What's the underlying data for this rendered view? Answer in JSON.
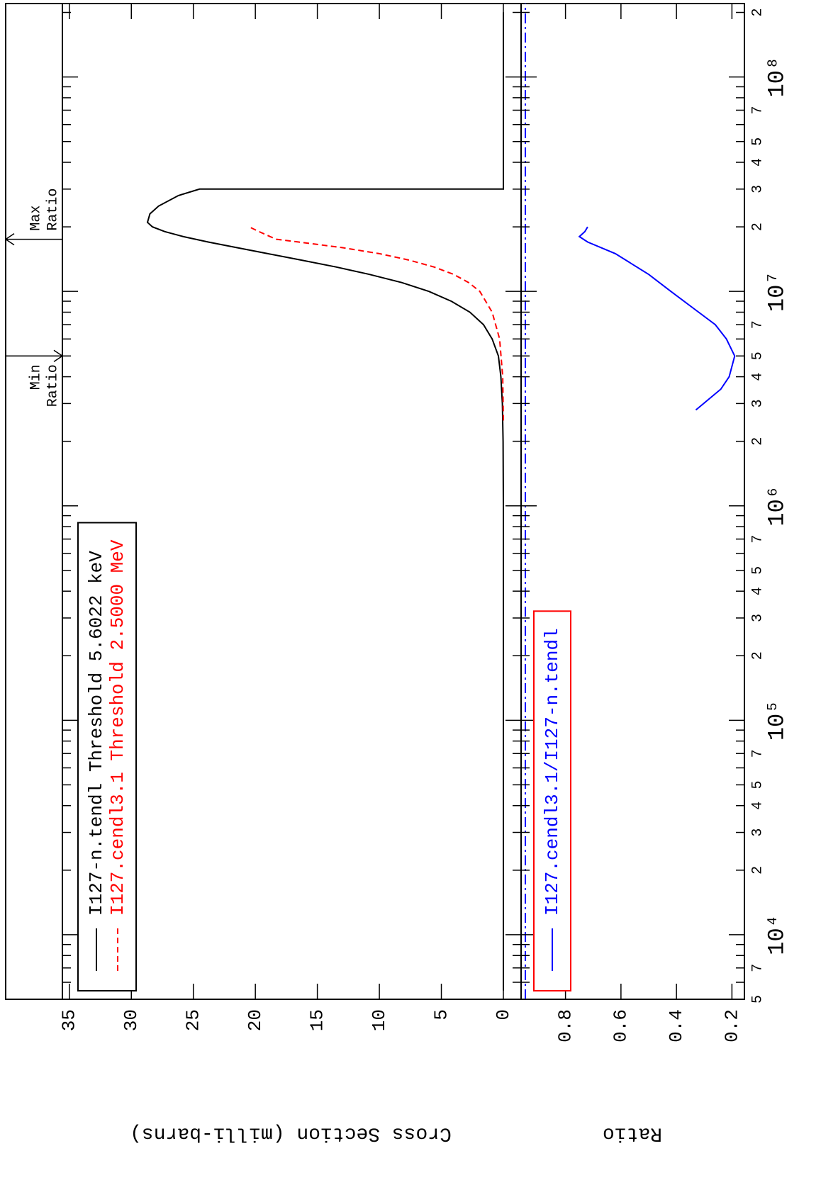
{
  "chart_data": [
    {
      "type": "line",
      "ylabel": "Cross Section (milli-barns)",
      "ylim": [
        -1.43,
        35.56
      ],
      "yticks": [
        0,
        5,
        10,
        15,
        20,
        25,
        30,
        35
      ],
      "legend": "upper-left",
      "legend_border": "#000000",
      "series": [
        {
          "name": "I127-n.tendl Threshold 5.6022 keV",
          "color": "#000000",
          "style": "solid",
          "x": [
            5500,
            1000000,
            2000000,
            3000000,
            4000000,
            5000000,
            6000000,
            7000000,
            8000000,
            9000000,
            10000000,
            11000000,
            12000000,
            13000000,
            14000000,
            15000000,
            16000000,
            17000000,
            18000000,
            19000000,
            20000000,
            21000000,
            23000000,
            25000000,
            28000000,
            30000000,
            30000000,
            200000000
          ],
          "values": [
            0,
            0,
            0.02,
            0.08,
            0.2,
            0.4,
            0.9,
            1.6,
            2.7,
            4.2,
            6.0,
            8.2,
            10.8,
            13.5,
            16.3,
            19.0,
            21.5,
            23.8,
            25.8,
            27.3,
            28.3,
            28.7,
            28.5,
            27.8,
            26.2,
            24.5,
            0,
            0
          ]
        },
        {
          "name": "I127.cendl3.1 Threshold 2.5000 MeV",
          "color": "#ff0000",
          "style": "dash",
          "x": [
            2500000,
            4000000,
            6000000,
            8000000,
            10000000,
            11000000,
            12000000,
            13000000,
            14000000,
            15000000,
            16000000,
            17000000,
            17500000,
            18000000,
            19000000,
            20000000
          ],
          "values": [
            0,
            0.05,
            0.3,
            0.9,
            1.9,
            2.8,
            4.0,
            5.6,
            7.6,
            10.0,
            13.0,
            16.5,
            18.3,
            18.8,
            19.7,
            20.5
          ]
        }
      ],
      "annotations": [
        {
          "lines": [
            "Min",
            "Ratio"
          ],
          "x": 5000000,
          "side": "left",
          "arrow": "down"
        },
        {
          "lines": [
            "Max",
            "Ratio"
          ],
          "x": 17500000,
          "side": "right",
          "arrow": "up"
        }
      ]
    },
    {
      "type": "line",
      "ylabel": "Ratio",
      "xscale": "log",
      "xlim": [
        5000,
        220000000
      ],
      "xticks": [
        {
          "value": 5000,
          "label": "5"
        },
        {
          "value": 7000,
          "label": "7"
        },
        {
          "value": 10000,
          "label": "10⁴"
        },
        {
          "value": 20000,
          "label": "2"
        },
        {
          "value": 30000,
          "label": "3"
        },
        {
          "value": 40000,
          "label": "4"
        },
        {
          "value": 50000,
          "label": "5"
        },
        {
          "value": 70000,
          "label": "7"
        },
        {
          "value": 100000,
          "label": "10⁵"
        },
        {
          "value": 200000,
          "label": "2"
        },
        {
          "value": 300000,
          "label": "3"
        },
        {
          "value": 400000,
          "label": "4"
        },
        {
          "value": 500000,
          "label": "5"
        },
        {
          "value": 700000,
          "label": "7"
        },
        {
          "value": 1000000,
          "label": "10⁶"
        },
        {
          "value": 2000000,
          "label": "2"
        },
        {
          "value": 3000000,
          "label": "3"
        },
        {
          "value": 4000000,
          "label": "4"
        },
        {
          "value": 5000000,
          "label": "5"
        },
        {
          "value": 7000000,
          "label": "7"
        },
        {
          "value": 10000000,
          "label": "10⁷"
        },
        {
          "value": 20000000,
          "label": "2"
        },
        {
          "value": 30000000,
          "label": "3"
        },
        {
          "value": 40000000,
          "label": "4"
        },
        {
          "value": 50000000,
          "label": "5"
        },
        {
          "value": 70000000,
          "label": "7"
        },
        {
          "value": 100000000,
          "label": "10⁸"
        },
        {
          "value": 200000000,
          "label": "2"
        }
      ],
      "xminorticks": [
        6000,
        8000,
        9000,
        60000,
        80000,
        90000,
        600000,
        800000,
        900000,
        6000000,
        8000000,
        9000000,
        60000000,
        80000000,
        90000000
      ],
      "ylim": [
        0.155,
        0.96
      ],
      "yticks": [
        0.2,
        0.4,
        0.6,
        0.8
      ],
      "legend": "upper-left",
      "legend_border": "#ff0000",
      "series": [
        {
          "name": "I127.cendl3.1/I127-n.tendl",
          "color": "#0000ff",
          "style": "solid",
          "x": [
            2800000,
            3500000,
            4000000,
            5000000,
            6000000,
            7000000,
            8000000,
            10000000,
            12000000,
            15000000,
            17000000,
            18000000,
            19000000,
            20000000
          ],
          "values": [
            0.33,
            0.24,
            0.21,
            0.19,
            0.22,
            0.26,
            0.32,
            0.42,
            0.5,
            0.62,
            0.72,
            0.75,
            0.73,
            0.72
          ]
        }
      ]
    }
  ]
}
